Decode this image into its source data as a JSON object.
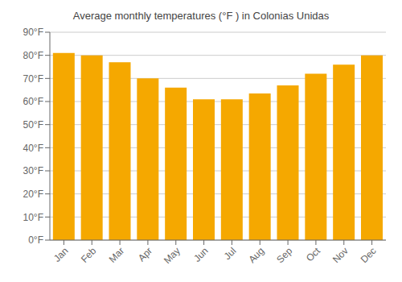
{
  "chart_data": {
    "type": "bar",
    "title": "Average monthly temperatures (°F ) in Colonias Unidas",
    "categories": [
      "Jan",
      "Feb",
      "Mar",
      "Apr",
      "May",
      "Jun",
      "Jul",
      "Aug",
      "Sep",
      "Oct",
      "Nov",
      "Dec"
    ],
    "values": [
      81,
      80,
      77,
      70,
      66,
      61,
      61,
      63.5,
      67,
      72,
      76,
      80
    ],
    "color": "#F5A800",
    "ylim": [
      0,
      90
    ],
    "yticks": [
      {
        "value": 0,
        "label": "0°F"
      },
      {
        "value": 10,
        "label": "10°F"
      },
      {
        "value": 20,
        "label": "20°F"
      },
      {
        "value": 30,
        "label": "30°F"
      },
      {
        "value": 40,
        "label": "40°F"
      },
      {
        "value": 50,
        "label": "50°F"
      },
      {
        "value": 60,
        "label": "60°F"
      },
      {
        "value": 70,
        "label": "70°F"
      },
      {
        "value": 80,
        "label": "80°F"
      },
      {
        "value": 90,
        "label": "90°F"
      }
    ],
    "grid": true
  }
}
